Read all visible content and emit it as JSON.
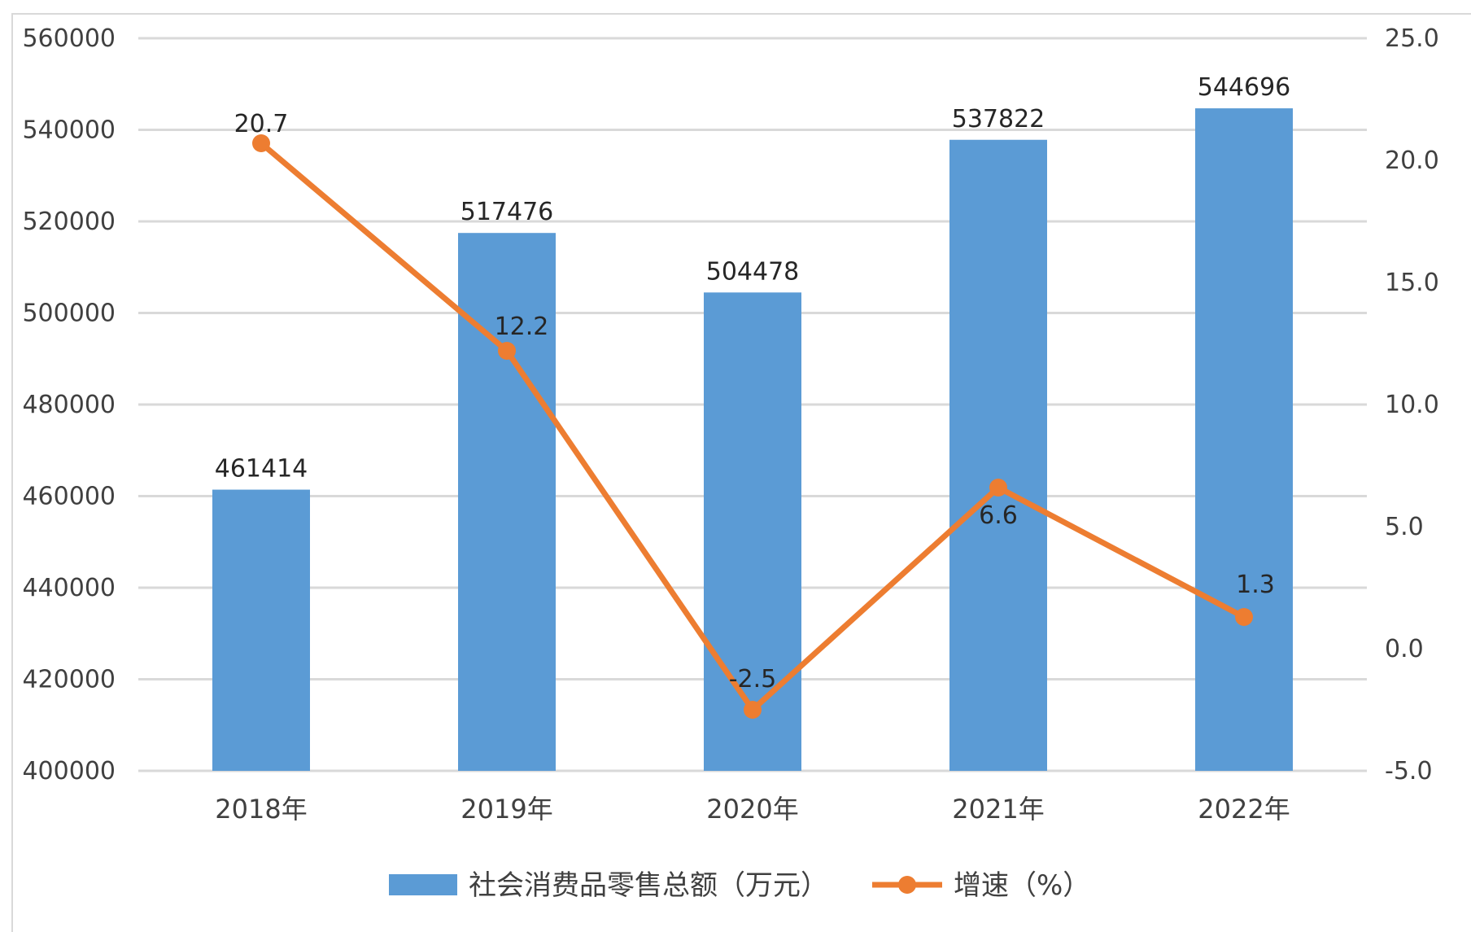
{
  "chart_data": {
    "type": "bar",
    "categories": [
      "2018年",
      "2019年",
      "2020年",
      "2021年",
      "2022年"
    ],
    "series": [
      {
        "name": "社会消费品零售总额（万元）",
        "type": "bar",
        "axis": "left",
        "values": [
          461414,
          517476,
          504478,
          537822,
          544696
        ],
        "labels": [
          "461414",
          "517476",
          "504478",
          "537822",
          "544696"
        ],
        "color": "#5b9bd5"
      },
      {
        "name": "增速（%）",
        "type": "line",
        "axis": "right",
        "values": [
          20.7,
          12.2,
          -2.5,
          6.6,
          1.3
        ],
        "labels": [
          "20.7",
          "12.2",
          "-2.5",
          "6.6",
          "1.3"
        ],
        "color": "#ed7d31",
        "marker": "circle"
      }
    ],
    "y_left": {
      "range": [
        400000,
        560000
      ],
      "ticks": [
        "400000",
        "420000",
        "440000",
        "460000",
        "480000",
        "500000",
        "520000",
        "540000",
        "560000"
      ]
    },
    "y_right": {
      "range": [
        -5.0,
        25.0
      ],
      "ticks": [
        "-5.0",
        "0.0",
        "5.0",
        "10.0",
        "15.0",
        "20.0",
        "25.0"
      ]
    },
    "title": "",
    "xlabel": "",
    "ylabel": "",
    "grid": true,
    "gridline_color": "#d9d9d9",
    "legend_position": "bottom"
  }
}
